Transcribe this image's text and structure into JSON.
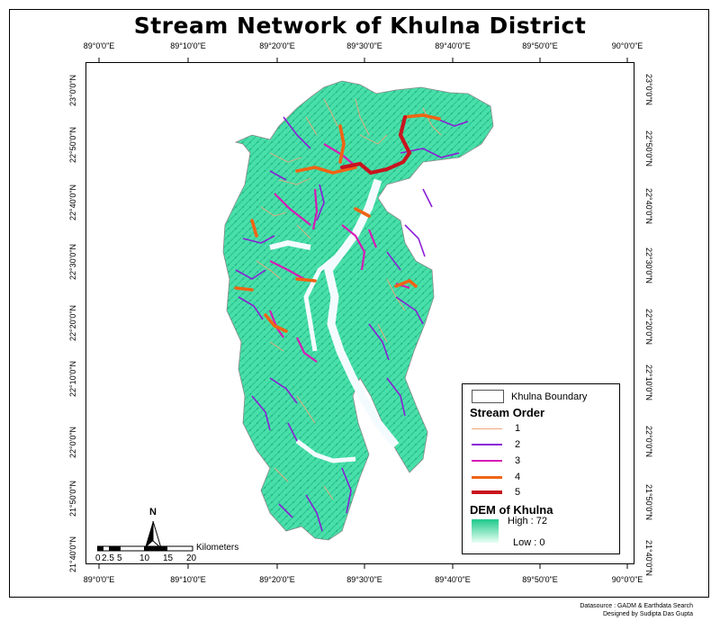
{
  "title": "Stream Network of Khulna District",
  "longitude_ticks": [
    "89°0'0\"E",
    "89°10'0\"E",
    "89°20'0\"E",
    "89°30'0\"E",
    "89°40'0\"E",
    "89°50'0\"E",
    "90°0'0\"E"
  ],
  "latitude_ticks": [
    "23°0'0\"N",
    "22°50'0\"N",
    "22°40'0\"N",
    "22°30'0\"N",
    "22°20'0\"N",
    "22°10'0\"N",
    "22°0'0\"N",
    "21°50'0\"N",
    "21°40'0\"N"
  ],
  "legend": {
    "boundary_label": "Khulna Boundary",
    "stream_order_title": "Stream Order",
    "orders": [
      {
        "label": "1",
        "color": "#f0a77c"
      },
      {
        "label": "2",
        "color": "#8a1fd6"
      },
      {
        "label": "3",
        "color": "#d61bb5"
      },
      {
        "label": "4",
        "color": "#f06414"
      },
      {
        "label": "5",
        "color": "#c8141e"
      }
    ],
    "dem_title": "DEM of Khulna",
    "dem_high": "High : 72",
    "dem_low": "Low : 0",
    "dem_colors": {
      "high": "#1ec98a",
      "low": "#e9fff5"
    }
  },
  "north_label": "N",
  "scale": {
    "unit": "Kilometers",
    "labels": [
      "0",
      "2.5",
      "5",
      "10",
      "15",
      "20"
    ]
  },
  "credits": {
    "source": "Datasource : GADM & Earthdata Search",
    "designer": "Designed by Sudipta Das Gupta"
  },
  "colors": {
    "land": "#49dfa9",
    "land_dark": "#22b987",
    "water": "#f4fbff"
  }
}
